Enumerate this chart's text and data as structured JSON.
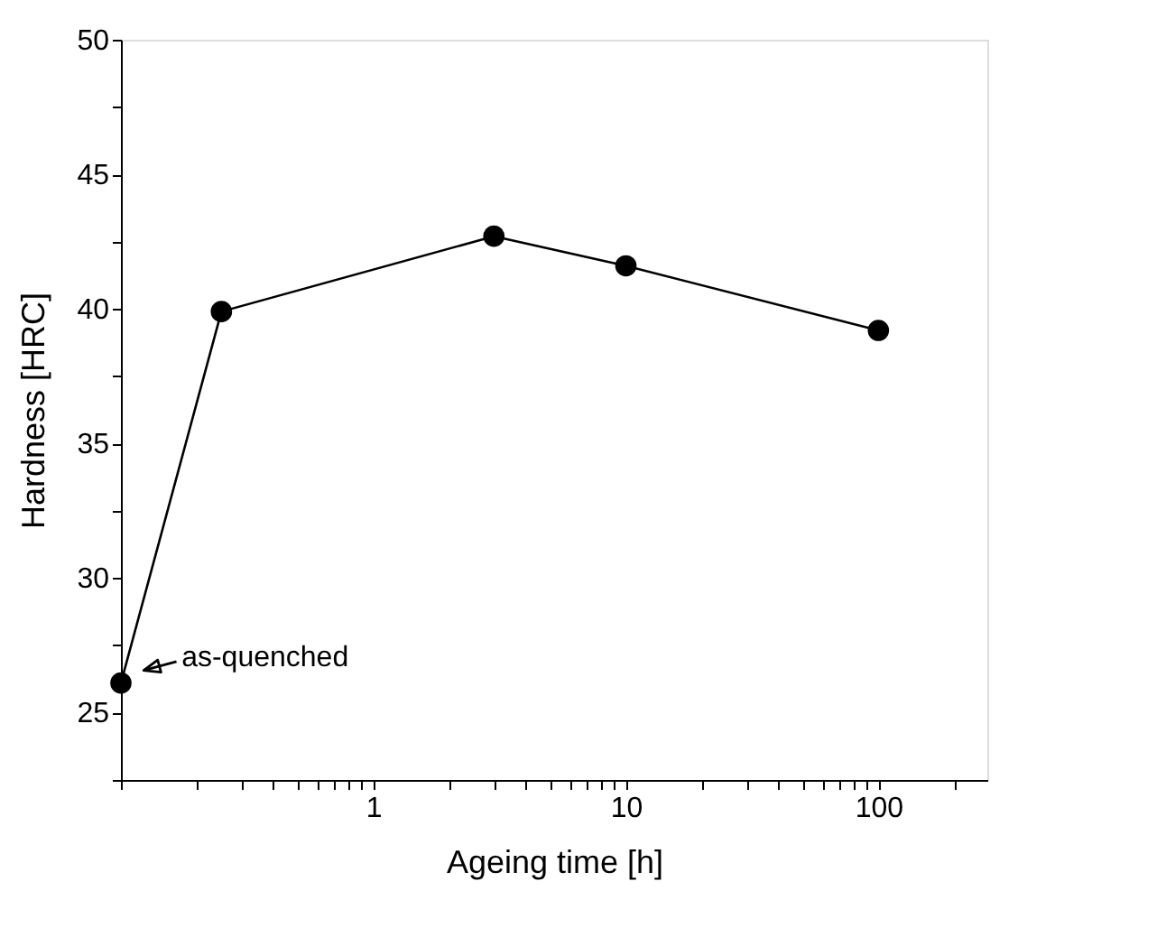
{
  "chart_data": {
    "type": "line",
    "xlabel": "Ageing time [h]",
    "ylabel": "Hardness [HRC]",
    "x": [
      0.1,
      0.25,
      3,
      10,
      100
    ],
    "series": [
      {
        "color": "#000000",
        "values": [
          26.1,
          39.9,
          42.7,
          41.6,
          39.2
        ]
      }
    ],
    "log": "x",
    "marker": "circle",
    "line_style": "solid",
    "grid": false,
    "xlim": [
      0.1,
      270
    ],
    "xticks": [
      {
        "value": 0.1,
        "label": null
      },
      {
        "value": 0.2,
        "label": null
      },
      {
        "value": 0.3,
        "label": null
      },
      {
        "value": 0.4,
        "label": null
      },
      {
        "value": 0.5,
        "label": null
      },
      {
        "value": 0.6,
        "label": null
      },
      {
        "value": 0.7,
        "label": null
      },
      {
        "value": 0.8,
        "label": null
      },
      {
        "value": 0.9,
        "label": null
      },
      1,
      {
        "value": 2,
        "label": null
      },
      {
        "value": 3,
        "label": null
      },
      {
        "value": 4,
        "label": null
      },
      {
        "value": 5,
        "label": null
      },
      {
        "value": 6,
        "label": null
      },
      {
        "value": 7,
        "label": null
      },
      {
        "value": 8,
        "label": null
      },
      {
        "value": 9,
        "label": null
      },
      10,
      {
        "value": 20,
        "label": null
      },
      {
        "value": 30,
        "label": null
      },
      {
        "value": 40,
        "label": null
      },
      {
        "value": 50,
        "label": null
      },
      {
        "value": 60,
        "label": null
      },
      {
        "value": 70,
        "label": null
      },
      {
        "value": 80,
        "label": null
      },
      {
        "value": 90,
        "label": null
      },
      100,
      {
        "value": 200,
        "label": null
      }
    ],
    "ylim": [
      22.5,
      50
    ],
    "yticks": [
      {
        "value": 22.5,
        "label": null
      },
      25,
      {
        "value": 27.5,
        "label": null
      },
      30,
      {
        "value": 32.5,
        "label": null
      },
      35,
      {
        "value": 37.5,
        "label": null
      },
      40,
      {
        "value": 42.5,
        "label": null
      },
      45,
      {
        "value": 47.5,
        "label": null
      },
      50
    ],
    "annotations": [
      {
        "text": "as-quenched",
        "x": 0.1,
        "y": 26.1
      }
    ]
  }
}
